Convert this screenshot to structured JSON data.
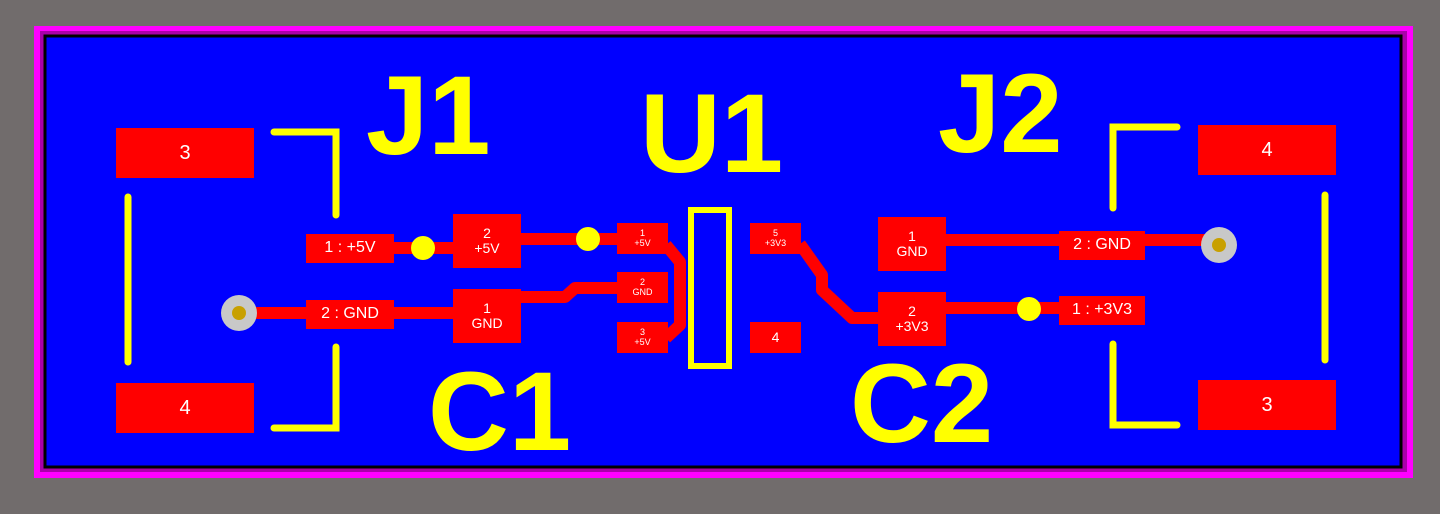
{
  "colors": {
    "background": "#716c6c",
    "board_outline": "#ff00ff",
    "copper_pour": "#0000ff",
    "copper": "#ff0000",
    "silkscreen": "#ffff00",
    "pad_text": "#ffffff",
    "via_fill": "#ffff00",
    "hole_ring": "#c8c8c8",
    "hole_core": "#c8a000"
  },
  "designators": {
    "j1": "J1",
    "u1": "U1",
    "j2": "J2",
    "c1": "C1",
    "c2": "C2"
  },
  "j1": {
    "mount_top": "3",
    "mount_bottom": "4",
    "pin1": "1 : +5V",
    "pin2": "2 : GND"
  },
  "c1": {
    "pad2_num": "2",
    "pad2_net": "+5V",
    "pad1_num": "1",
    "pad1_net": "GND"
  },
  "u1": {
    "pin1_num": "1",
    "pin1_net": "+5V",
    "pin2_num": "2",
    "pin2_net": "GND",
    "pin3_num": "3",
    "pin3_net": "+5V",
    "pin5_num": "5",
    "pin5_net": "+3V3",
    "pin4_num": "4"
  },
  "c2": {
    "pad1_num": "1",
    "pad1_net": "GND",
    "pad2_num": "2",
    "pad2_net": "+3V3"
  },
  "j2": {
    "mount_top": "4",
    "mount_bottom": "3",
    "pin2": "2 : GND",
    "pin1": "1 : +3V3"
  }
}
